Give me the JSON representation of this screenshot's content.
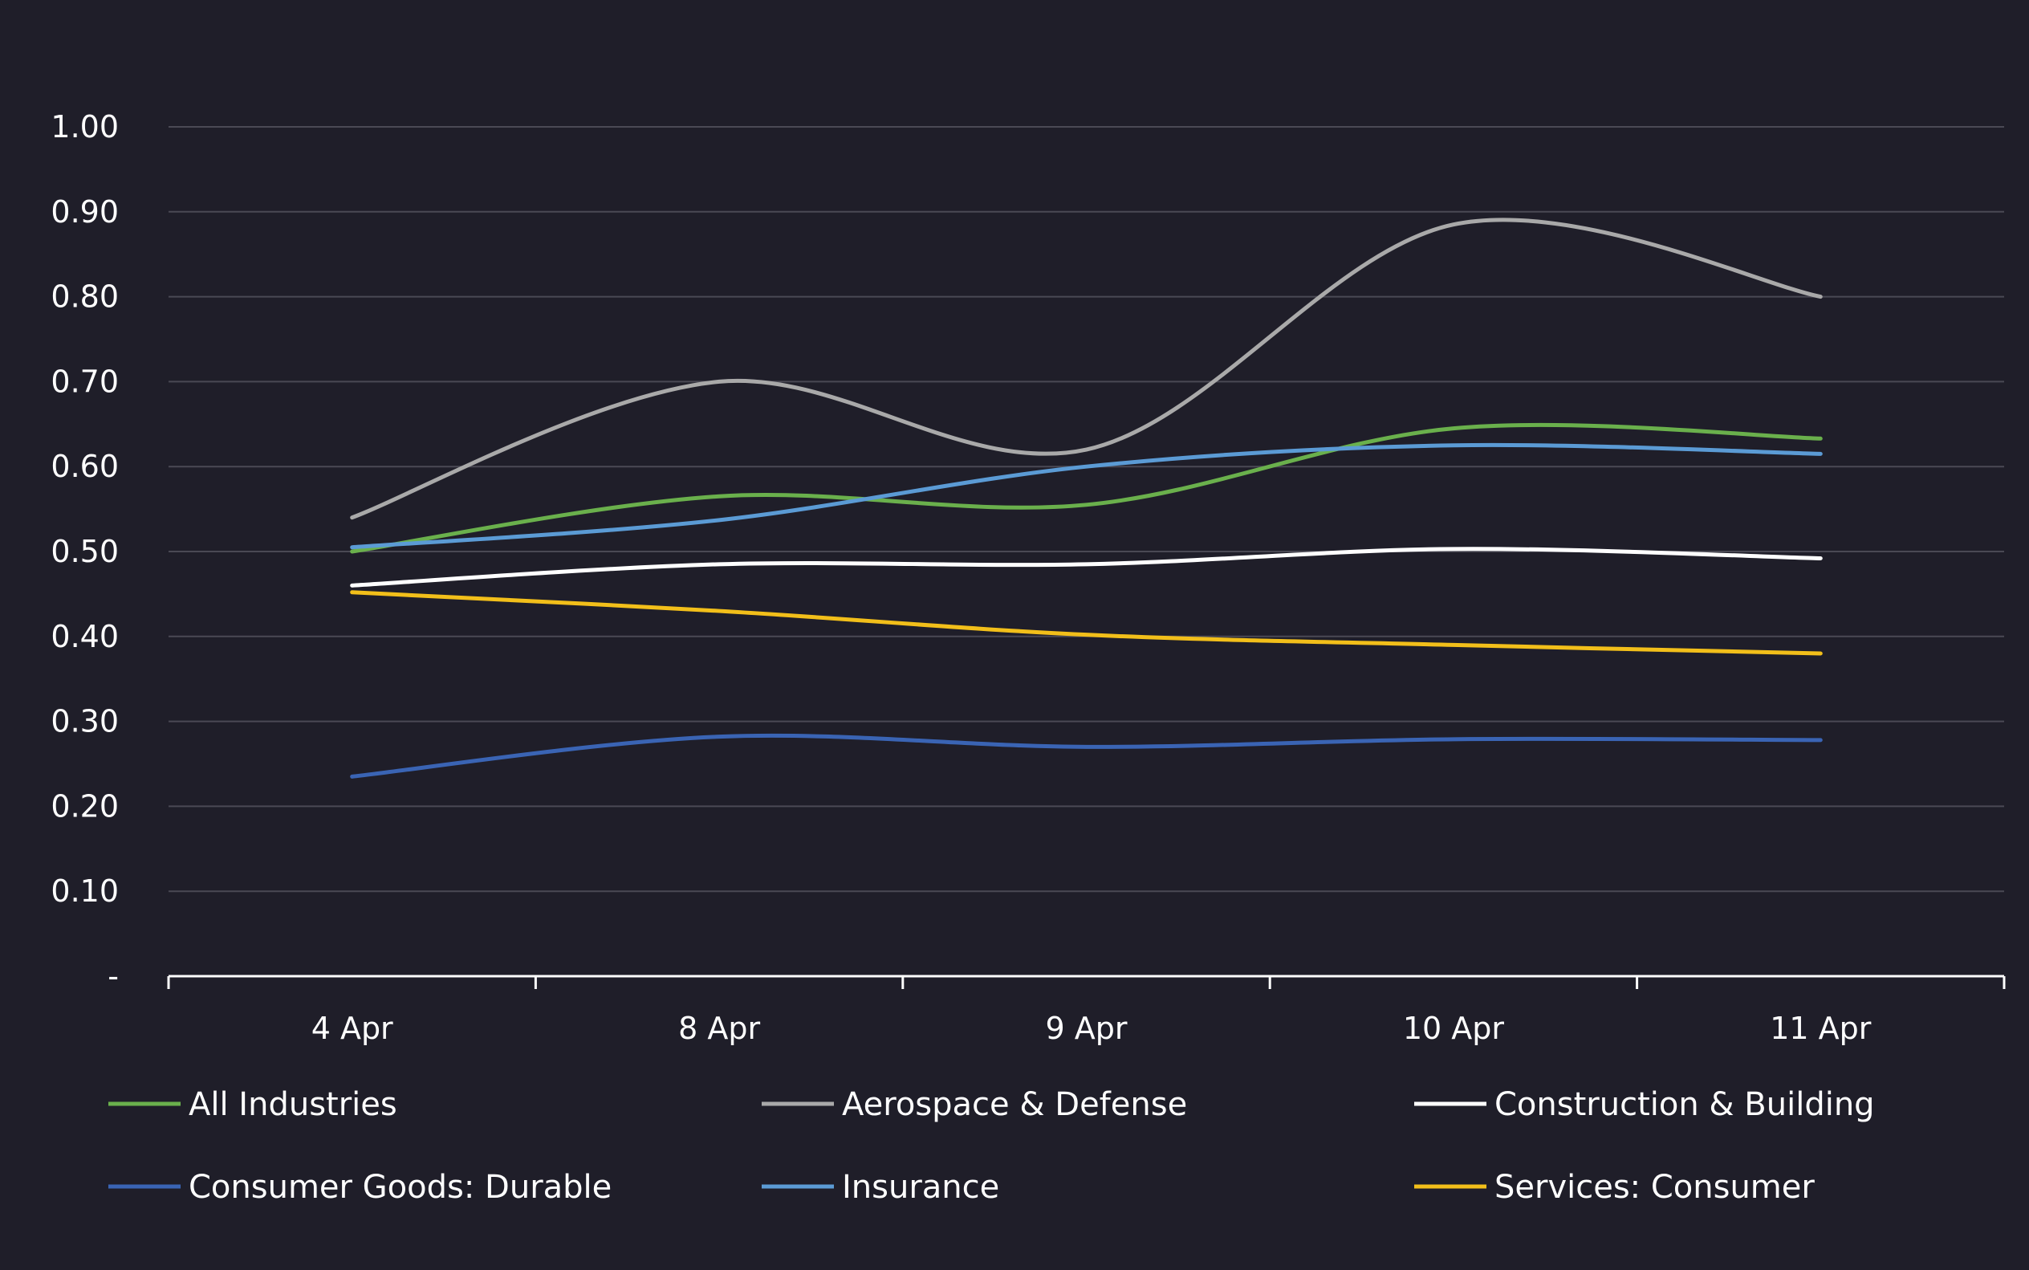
{
  "chart_data": {
    "type": "line",
    "title": "",
    "xlabel": "",
    "ylabel": "",
    "categories": [
      "4 Apr",
      "8 Apr",
      "9 Apr",
      "10 Apr",
      "11 Apr"
    ],
    "ylim": [
      0,
      1.0
    ],
    "yticks": [
      {
        "value": 0,
        "label": "-"
      },
      {
        "value": 0.1,
        "label": "0.10"
      },
      {
        "value": 0.2,
        "label": "0.20"
      },
      {
        "value": 0.3,
        "label": "0.30"
      },
      {
        "value": 0.4,
        "label": "0.40"
      },
      {
        "value": 0.5,
        "label": "0.50"
      },
      {
        "value": 0.6,
        "label": "0.60"
      },
      {
        "value": 0.7,
        "label": "0.70"
      },
      {
        "value": 0.8,
        "label": "0.80"
      },
      {
        "value": 0.9,
        "label": "0.90"
      },
      {
        "value": 1.0,
        "label": "1.00"
      }
    ],
    "grid": true,
    "legend_position": "bottom",
    "series": [
      {
        "name": "All Industries",
        "color": "#6ab04c",
        "values": [
          0.5,
          0.565,
          0.555,
          0.645,
          0.633
        ]
      },
      {
        "name": "Aerospace & Defense",
        "color": "#a9a9a9",
        "values": [
          0.54,
          0.7,
          0.62,
          0.885,
          0.8
        ]
      },
      {
        "name": "Construction & Building",
        "color": "#ffffff",
        "values": [
          0.46,
          0.485,
          0.485,
          0.503,
          0.492
        ]
      },
      {
        "name": "Consumer Goods: Durable",
        "color": "#3a64b4",
        "values": [
          0.235,
          0.282,
          0.27,
          0.279,
          0.278
        ]
      },
      {
        "name": "Insurance",
        "color": "#5b9bd5",
        "values": [
          0.505,
          0.537,
          0.6,
          0.625,
          0.615
        ]
      },
      {
        "name": "Services: Consumer",
        "color": "#f2bf1a",
        "values": [
          0.452,
          0.43,
          0.402,
          0.39,
          0.38
        ]
      }
    ]
  }
}
